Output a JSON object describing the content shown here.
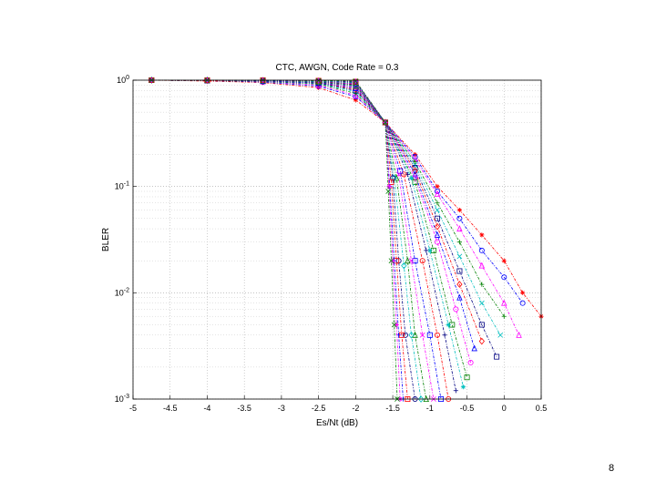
{
  "slide": {
    "page_number": "8"
  },
  "chart_data": {
    "type": "line",
    "title": "CTC, AWGN, Code Rate = 0.3",
    "xlabel": "Es/Nt (dB)",
    "ylabel": "BLER",
    "xlim": [
      -5,
      0.5
    ],
    "ylim": [
      0.001,
      1
    ],
    "yscale": "log",
    "grid": true,
    "x_ticks": [
      "-5",
      "-4.5",
      "-4",
      "-3.5",
      "-3",
      "-2.5",
      "-2",
      "-1.5",
      "-1",
      "-0.5",
      "0",
      "0.5"
    ],
    "y_ticks": [
      {
        "base": "10",
        "exp": "0"
      },
      {
        "base": "10",
        "exp": "-1"
      },
      {
        "base": "10",
        "exp": "-2"
      },
      {
        "base": "10",
        "exp": "-3"
      }
    ],
    "crossover": {
      "x": -1.6,
      "y": 0.4
    },
    "series": [
      {
        "color": "#ff0000",
        "marker": "star",
        "x": [
          -4.75,
          -4.0,
          -3.25,
          -2.5,
          -2.0,
          -1.6,
          -1.2,
          -0.9,
          -0.6,
          -0.3,
          0.0,
          0.25,
          0.5
        ],
        "y": [
          1.0,
          0.98,
          0.95,
          0.85,
          0.65,
          0.4,
          0.2,
          0.1,
          0.06,
          0.035,
          0.02,
          0.01,
          0.006
        ]
      },
      {
        "color": "#0000ff",
        "marker": "circle",
        "x": [
          -4.75,
          -4.0,
          -3.25,
          -2.5,
          -2.0,
          -1.6,
          -1.2,
          -0.9,
          -0.6,
          -0.3,
          0.0,
          0.25
        ],
        "y": [
          1.0,
          0.99,
          0.96,
          0.88,
          0.7,
          0.4,
          0.19,
          0.09,
          0.05,
          0.025,
          0.014,
          0.008
        ]
      },
      {
        "color": "#ff00ff",
        "marker": "triangle",
        "x": [
          -4.75,
          -4.0,
          -3.25,
          -2.5,
          -2.0,
          -1.6,
          -1.2,
          -0.9,
          -0.6,
          -0.3,
          0.0,
          0.2
        ],
        "y": [
          1.0,
          0.99,
          0.97,
          0.9,
          0.72,
          0.4,
          0.18,
          0.085,
          0.04,
          0.018,
          0.008,
          0.004
        ]
      },
      {
        "color": "#008000",
        "marker": "plus",
        "x": [
          -4.75,
          -4.0,
          -3.25,
          -2.5,
          -2.0,
          -1.6,
          -1.2,
          -0.9,
          -0.6,
          -0.3,
          0.0
        ],
        "y": [
          1.0,
          0.99,
          0.97,
          0.92,
          0.75,
          0.4,
          0.17,
          0.07,
          0.03,
          0.012,
          0.006
        ]
      },
      {
        "color": "#00bfbf",
        "marker": "x",
        "x": [
          -4.75,
          -4.0,
          -3.25,
          -2.5,
          -2.0,
          -1.6,
          -1.2,
          -0.9,
          -0.6,
          -0.3,
          -0.05
        ],
        "y": [
          1.0,
          0.99,
          0.98,
          0.93,
          0.78,
          0.4,
          0.16,
          0.06,
          0.022,
          0.008,
          0.004
        ]
      },
      {
        "color": "#000080",
        "marker": "square",
        "x": [
          -4.75,
          -4.0,
          -3.25,
          -2.5,
          -2.0,
          -1.6,
          -1.2,
          -0.9,
          -0.6,
          -0.3,
          -0.1
        ],
        "y": [
          1.0,
          0.99,
          0.98,
          0.94,
          0.8,
          0.4,
          0.15,
          0.05,
          0.016,
          0.005,
          0.0025
        ]
      },
      {
        "color": "#ff0000",
        "marker": "diamond",
        "x": [
          -4.75,
          -4.0,
          -3.25,
          -2.5,
          -2.0,
          -1.6,
          -1.2,
          -0.9,
          -0.6,
          -0.3
        ],
        "y": [
          1.0,
          0.99,
          0.98,
          0.95,
          0.82,
          0.4,
          0.14,
          0.042,
          0.012,
          0.0035
        ]
      },
      {
        "color": "#0000ff",
        "marker": "triangle",
        "x": [
          -4.75,
          -4.0,
          -3.25,
          -2.5,
          -2.0,
          -1.6,
          -1.2,
          -0.9,
          -0.6,
          -0.4
        ],
        "y": [
          1.0,
          1.0,
          0.98,
          0.95,
          0.84,
          0.4,
          0.13,
          0.035,
          0.009,
          0.003
        ]
      },
      {
        "color": "#ff00ff",
        "marker": "circle",
        "x": [
          -4.75,
          -4.0,
          -3.25,
          -2.5,
          -2.0,
          -1.6,
          -1.2,
          -0.9,
          -0.65,
          -0.45
        ],
        "y": [
          1.0,
          1.0,
          0.99,
          0.96,
          0.86,
          0.4,
          0.12,
          0.03,
          0.007,
          0.0022
        ]
      },
      {
        "color": "#008000",
        "marker": "square",
        "x": [
          -4.75,
          -4.0,
          -3.25,
          -2.5,
          -2.0,
          -1.6,
          -1.2,
          -0.95,
          -0.7,
          -0.5
        ],
        "y": [
          1.0,
          1.0,
          0.99,
          0.96,
          0.88,
          0.4,
          0.11,
          0.025,
          0.005,
          0.0016
        ]
      },
      {
        "color": "#00bfbf",
        "marker": "star",
        "x": [
          -4.75,
          -4.0,
          -3.25,
          -2.5,
          -2.0,
          -1.6,
          -1.25,
          -1.0,
          -0.75,
          -0.55
        ],
        "y": [
          1.0,
          1.0,
          0.99,
          0.97,
          0.89,
          0.4,
          0.12,
          0.025,
          0.005,
          0.0013
        ]
      },
      {
        "color": "#000080",
        "marker": "plus",
        "x": [
          -4.75,
          -4.0,
          -3.25,
          -2.5,
          -2.0,
          -1.6,
          -1.3,
          -1.05,
          -0.8,
          -0.65
        ],
        "y": [
          1.0,
          1.0,
          0.99,
          0.97,
          0.9,
          0.4,
          0.13,
          0.025,
          0.004,
          0.0012
        ]
      },
      {
        "color": "#ff0000",
        "marker": "circle",
        "x": [
          -4.75,
          -4.0,
          -3.25,
          -2.5,
          -2.0,
          -1.6,
          -1.35,
          -1.1,
          -0.9,
          -0.75
        ],
        "y": [
          1.0,
          1.0,
          0.99,
          0.98,
          0.91,
          0.4,
          0.13,
          0.02,
          0.004,
          0.001
        ]
      },
      {
        "color": "#0000ff",
        "marker": "square",
        "x": [
          -4.75,
          -4.0,
          -3.25,
          -2.5,
          -2.0,
          -1.6,
          -1.4,
          -1.2,
          -1.0,
          -0.85
        ],
        "y": [
          1.0,
          1.0,
          0.99,
          0.98,
          0.92,
          0.4,
          0.14,
          0.02,
          0.004,
          0.001
        ]
      },
      {
        "color": "#ff00ff",
        "marker": "x",
        "x": [
          -4.75,
          -4.0,
          -3.25,
          -2.5,
          -2.0,
          -1.6,
          -1.42,
          -1.25,
          -1.1,
          -0.95
        ],
        "y": [
          1.0,
          1.0,
          0.99,
          0.98,
          0.93,
          0.4,
          0.13,
          0.02,
          0.004,
          0.001
        ]
      },
      {
        "color": "#008000",
        "marker": "triangle",
        "x": [
          -4.75,
          -4.0,
          -3.25,
          -2.5,
          -2.0,
          -1.6,
          -1.45,
          -1.3,
          -1.2,
          -1.05
        ],
        "y": [
          1.0,
          1.0,
          0.99,
          0.98,
          0.94,
          0.4,
          0.12,
          0.02,
          0.004,
          0.001
        ]
      },
      {
        "color": "#00bfbf",
        "marker": "diamond",
        "x": [
          -4.75,
          -4.0,
          -3.25,
          -2.5,
          -2.0,
          -1.6,
          -1.48,
          -1.35,
          -1.25,
          -1.12
        ],
        "y": [
          1.0,
          1.0,
          0.99,
          0.98,
          0.95,
          0.4,
          0.12,
          0.018,
          0.004,
          0.001
        ]
      },
      {
        "color": "#000080",
        "marker": "circle",
        "x": [
          -4.75,
          -4.0,
          -3.25,
          -2.5,
          -2.0,
          -1.6,
          -1.5,
          -1.42,
          -1.33,
          -1.2
        ],
        "y": [
          1.0,
          1.0,
          0.99,
          0.99,
          0.96,
          0.4,
          0.12,
          0.02,
          0.004,
          0.001
        ]
      },
      {
        "color": "#ff0000",
        "marker": "square",
        "x": [
          -4.75,
          -4.0,
          -3.25,
          -2.5,
          -2.0,
          -1.6,
          -1.52,
          -1.45,
          -1.38,
          -1.3
        ],
        "y": [
          1.0,
          1.0,
          1.0,
          0.99,
          0.97,
          0.4,
          0.11,
          0.02,
          0.004,
          0.001
        ]
      },
      {
        "color": "#0000ff",
        "marker": "plus",
        "x": [
          -4.75,
          -4.0,
          -3.25,
          -2.5,
          -2.0,
          -1.6,
          -1.54,
          -1.48,
          -1.42,
          -1.36
        ],
        "y": [
          1.0,
          1.0,
          1.0,
          0.99,
          0.97,
          0.4,
          0.1,
          0.02,
          0.004,
          0.001
        ]
      },
      {
        "color": "#ff00ff",
        "marker": "star",
        "x": [
          -4.75,
          -4.0,
          -3.25,
          -2.5,
          -2.0,
          -1.6,
          -1.55,
          -1.5,
          -1.45,
          -1.4
        ],
        "y": [
          1.0,
          1.0,
          1.0,
          0.99,
          0.98,
          0.4,
          0.1,
          0.02,
          0.005,
          0.001
        ]
      },
      {
        "color": "#008000",
        "marker": "x",
        "x": [
          -4.75,
          -4.0,
          -3.25,
          -2.5,
          -2.0,
          -1.6,
          -1.56,
          -1.52,
          -1.48,
          -1.44
        ],
        "y": [
          1.0,
          1.0,
          1.0,
          0.99,
          0.98,
          0.4,
          0.09,
          0.02,
          0.005,
          0.001
        ]
      }
    ]
  }
}
